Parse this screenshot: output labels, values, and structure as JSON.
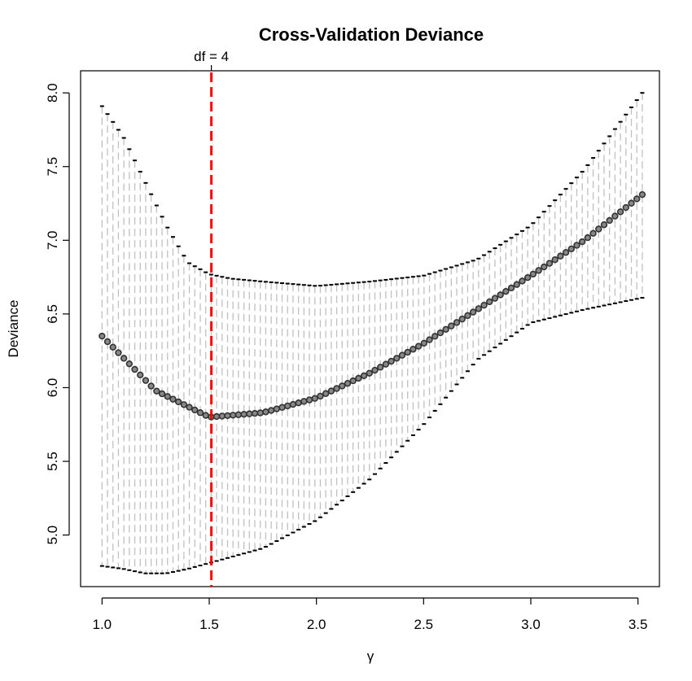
{
  "chart_data": {
    "type": "scatter",
    "title": "Cross-Validation Deviance",
    "xlabel": "γ",
    "ylabel": "Deviance",
    "xlim": [
      0.9,
      3.6
    ],
    "ylim": [
      4.65,
      8.15
    ],
    "x_ticks": [
      "1.0",
      "1.5",
      "2.0",
      "2.5",
      "3.0",
      "3.5"
    ],
    "y_ticks": [
      "5.0",
      "5.5",
      "6.0",
      "6.5",
      "7.0",
      "7.5",
      "8.0"
    ],
    "grid": false,
    "legend": "none",
    "reference_line": {
      "x": 1.51,
      "label": "df = 4",
      "color": "#ff0000"
    },
    "x_range": [
      1.0,
      3.52
    ],
    "points": 100,
    "series": [
      {
        "kind": "mean",
        "color": "#000000",
        "x": [
          1.0,
          1.25,
          1.5,
          1.75,
          2.0,
          2.25,
          2.5,
          2.75,
          3.0,
          3.25,
          3.52
        ],
        "values": [
          6.35,
          5.98,
          5.8,
          5.83,
          5.93,
          6.1,
          6.3,
          6.53,
          6.76,
          7.0,
          7.31
        ]
      },
      {
        "kind": "upper",
        "color": "#000000",
        "x": [
          1.0,
          1.1,
          1.2,
          1.3,
          1.4,
          1.5,
          1.6,
          1.75,
          2.0,
          2.25,
          2.5,
          2.75,
          3.0,
          3.25,
          3.52
        ],
        "values": [
          7.91,
          7.7,
          7.4,
          7.1,
          6.85,
          6.77,
          6.74,
          6.72,
          6.69,
          6.72,
          6.76,
          6.87,
          7.1,
          7.48,
          8.0
        ]
      },
      {
        "kind": "lower",
        "color": "#000000",
        "x": [
          1.0,
          1.1,
          1.2,
          1.3,
          1.4,
          1.5,
          1.75,
          2.0,
          2.25,
          2.5,
          2.75,
          3.0,
          3.25,
          3.52
        ],
        "values": [
          4.79,
          4.77,
          4.74,
          4.74,
          4.77,
          4.81,
          4.91,
          5.1,
          5.38,
          5.75,
          6.19,
          6.44,
          6.53,
          6.61
        ]
      }
    ]
  },
  "colors": {
    "errorbar": "#c0c0c0",
    "cap": "#000000",
    "marker": "#333333",
    "refline": "#ff0000"
  }
}
